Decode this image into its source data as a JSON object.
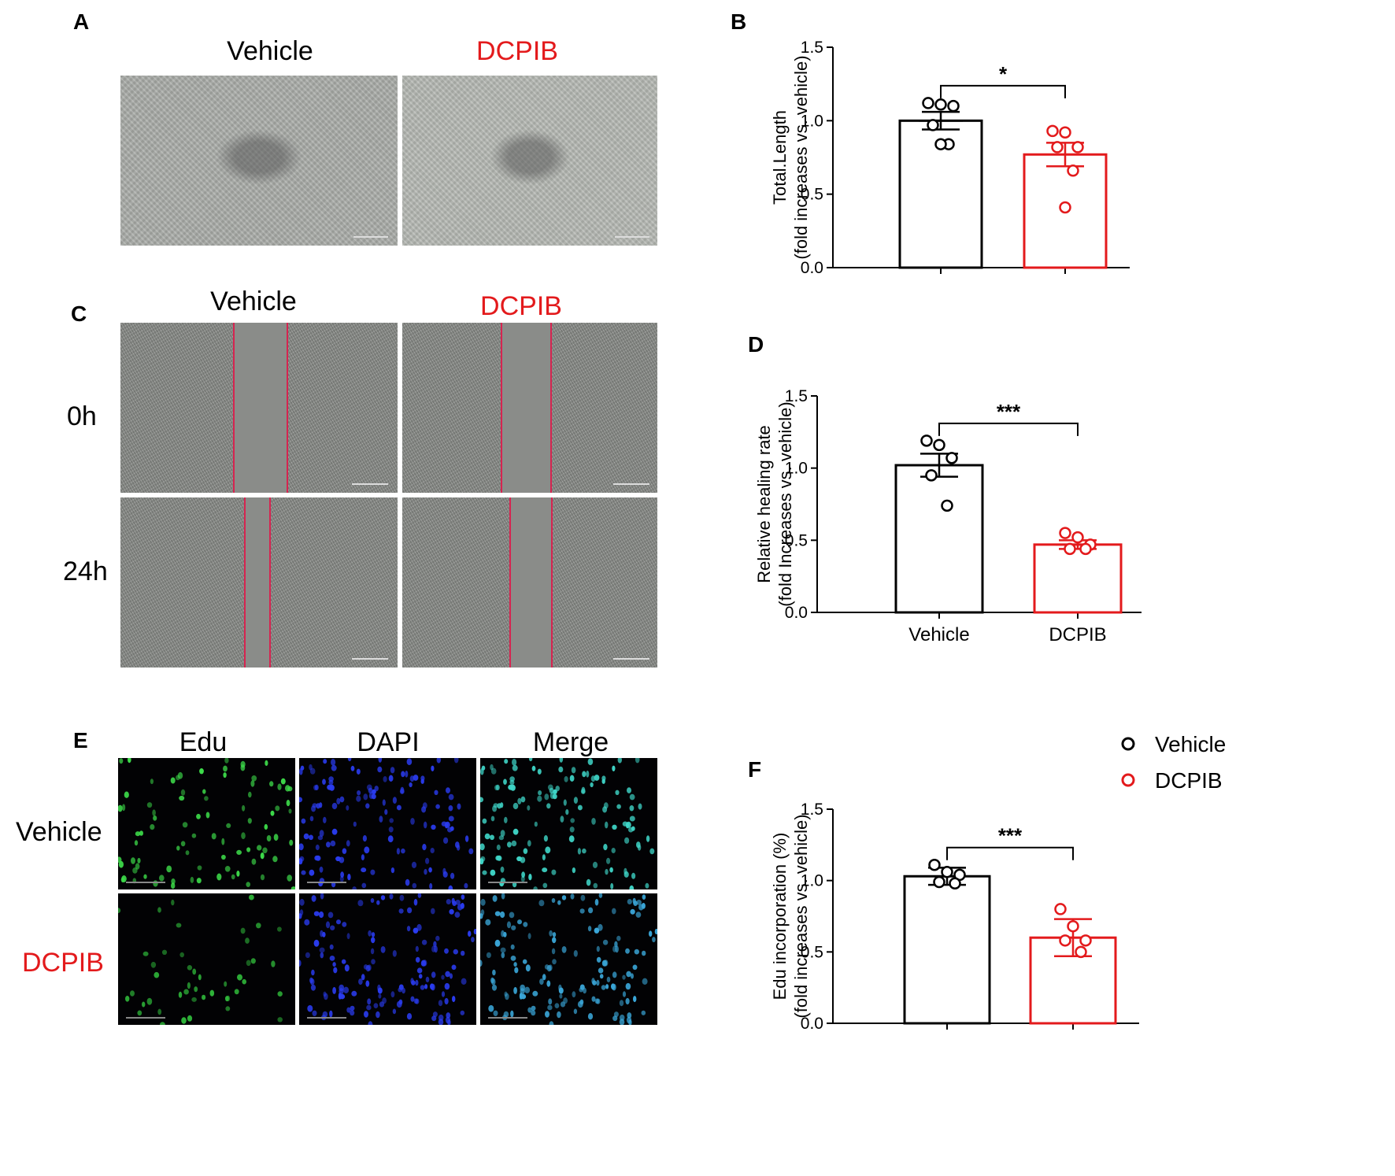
{
  "panels": {
    "A": {
      "label": "A",
      "col_titles": [
        "Vehicle",
        "DCPIB"
      ]
    },
    "B": {
      "label": "B"
    },
    "C": {
      "label": "C",
      "col_titles": [
        "Vehicle",
        "DCPIB"
      ],
      "row_labels": [
        "0h",
        "24h"
      ]
    },
    "D": {
      "label": "D"
    },
    "E": {
      "label": "E",
      "col_titles": [
        "Edu",
        "DAPI",
        "Merge"
      ],
      "row_labels": [
        "Vehicle",
        "DCPIB"
      ]
    },
    "F": {
      "label": "F"
    }
  },
  "legend": {
    "items": [
      "Vehicle",
      "DCPIB"
    ]
  },
  "colors": {
    "vehicle": "#000000",
    "dcpib": "#e31a1c"
  },
  "chart_data": [
    {
      "panel": "B",
      "type": "bar",
      "categories": [
        "Vehicle",
        "DCPIB"
      ],
      "ylabel_line1": "Total.Length",
      "ylabel_line2": "(fold increases vs. vehicle)",
      "ylim": [
        0,
        1.5
      ],
      "yticks": [
        "0.0",
        "0.5",
        "1.0",
        "1.5"
      ],
      "show_xticklabels": false,
      "values": [
        1.0,
        0.77
      ],
      "errors": [
        0.06,
        0.08
      ],
      "points": [
        [
          1.12,
          1.11,
          1.1,
          0.97,
          0.84,
          0.84
        ],
        [
          0.93,
          0.92,
          0.82,
          0.82,
          0.66,
          0.41
        ]
      ],
      "significance": "*"
    },
    {
      "panel": "D",
      "type": "bar",
      "categories": [
        "Vehicle",
        "DCPIB"
      ],
      "ylabel_line1": "Relative healing rate",
      "ylabel_line2": "(fold Increases vs. vehicle)",
      "ylim": [
        0,
        1.5
      ],
      "yticks": [
        "0.0",
        "0.5",
        "1.0",
        "1.5"
      ],
      "show_xticklabels": true,
      "values": [
        1.02,
        0.47
      ],
      "errors": [
        0.08,
        0.03
      ],
      "points": [
        [
          1.19,
          1.16,
          1.07,
          0.95,
          0.74
        ],
        [
          0.55,
          0.52,
          0.47,
          0.44,
          0.44
        ]
      ],
      "significance": "***"
    },
    {
      "panel": "F",
      "type": "bar",
      "categories": [
        "Vehicle",
        "DCPIB"
      ],
      "ylabel_line1": "Edu incorporation (%)",
      "ylabel_line2": "(fold increases vs. vehicle)",
      "ylim": [
        0,
        1.5
      ],
      "yticks": [
        "0.0",
        "0.5",
        "1.0",
        "1.5"
      ],
      "show_xticklabels": false,
      "values": [
        1.03,
        0.6
      ],
      "errors": [
        0.06,
        0.13
      ],
      "points": [
        [
          1.11,
          1.06,
          1.04,
          0.99,
          0.98
        ],
        [
          0.8,
          0.68,
          0.58,
          0.58,
          0.5
        ]
      ],
      "significance": "***"
    }
  ]
}
